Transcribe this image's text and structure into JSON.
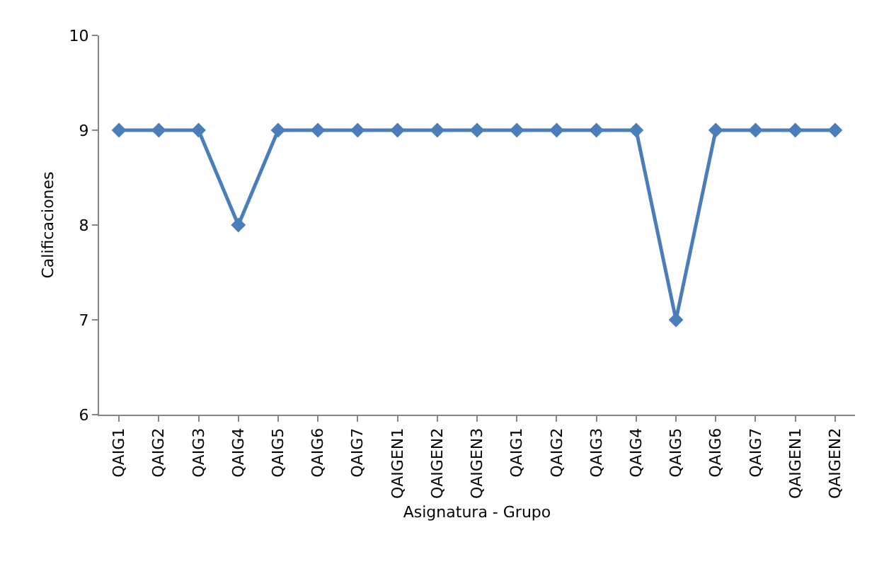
{
  "chart_data": {
    "type": "line",
    "xlabel": "Asignatura - Grupo",
    "ylabel": "Calificaciones",
    "categories": [
      "QAIG1",
      "QAIG2",
      "QAIG3",
      "QAIG4",
      "QAIG5",
      "QAIG6",
      "QAIG7",
      "QAIGEN1",
      "QAIGEN2",
      "QAIGEN3",
      "QAIG1",
      "QAIG2",
      "QAIG3",
      "QAIG4",
      "QAIG5",
      "QAIG6",
      "QAIG7",
      "QAIGEN1",
      "QAIGEN2"
    ],
    "series": [
      {
        "color": "#4a7ebb",
        "values": [
          9,
          9,
          9,
          8,
          9,
          9,
          9,
          9,
          9,
          9,
          9,
          9,
          9,
          9,
          7,
          9,
          9,
          9,
          9
        ]
      }
    ],
    "ylim": [
      6,
      10
    ],
    "yticks": [
      6,
      7,
      8,
      9,
      10
    ],
    "legend": false,
    "marker": "diamond",
    "line_style": "solid"
  }
}
